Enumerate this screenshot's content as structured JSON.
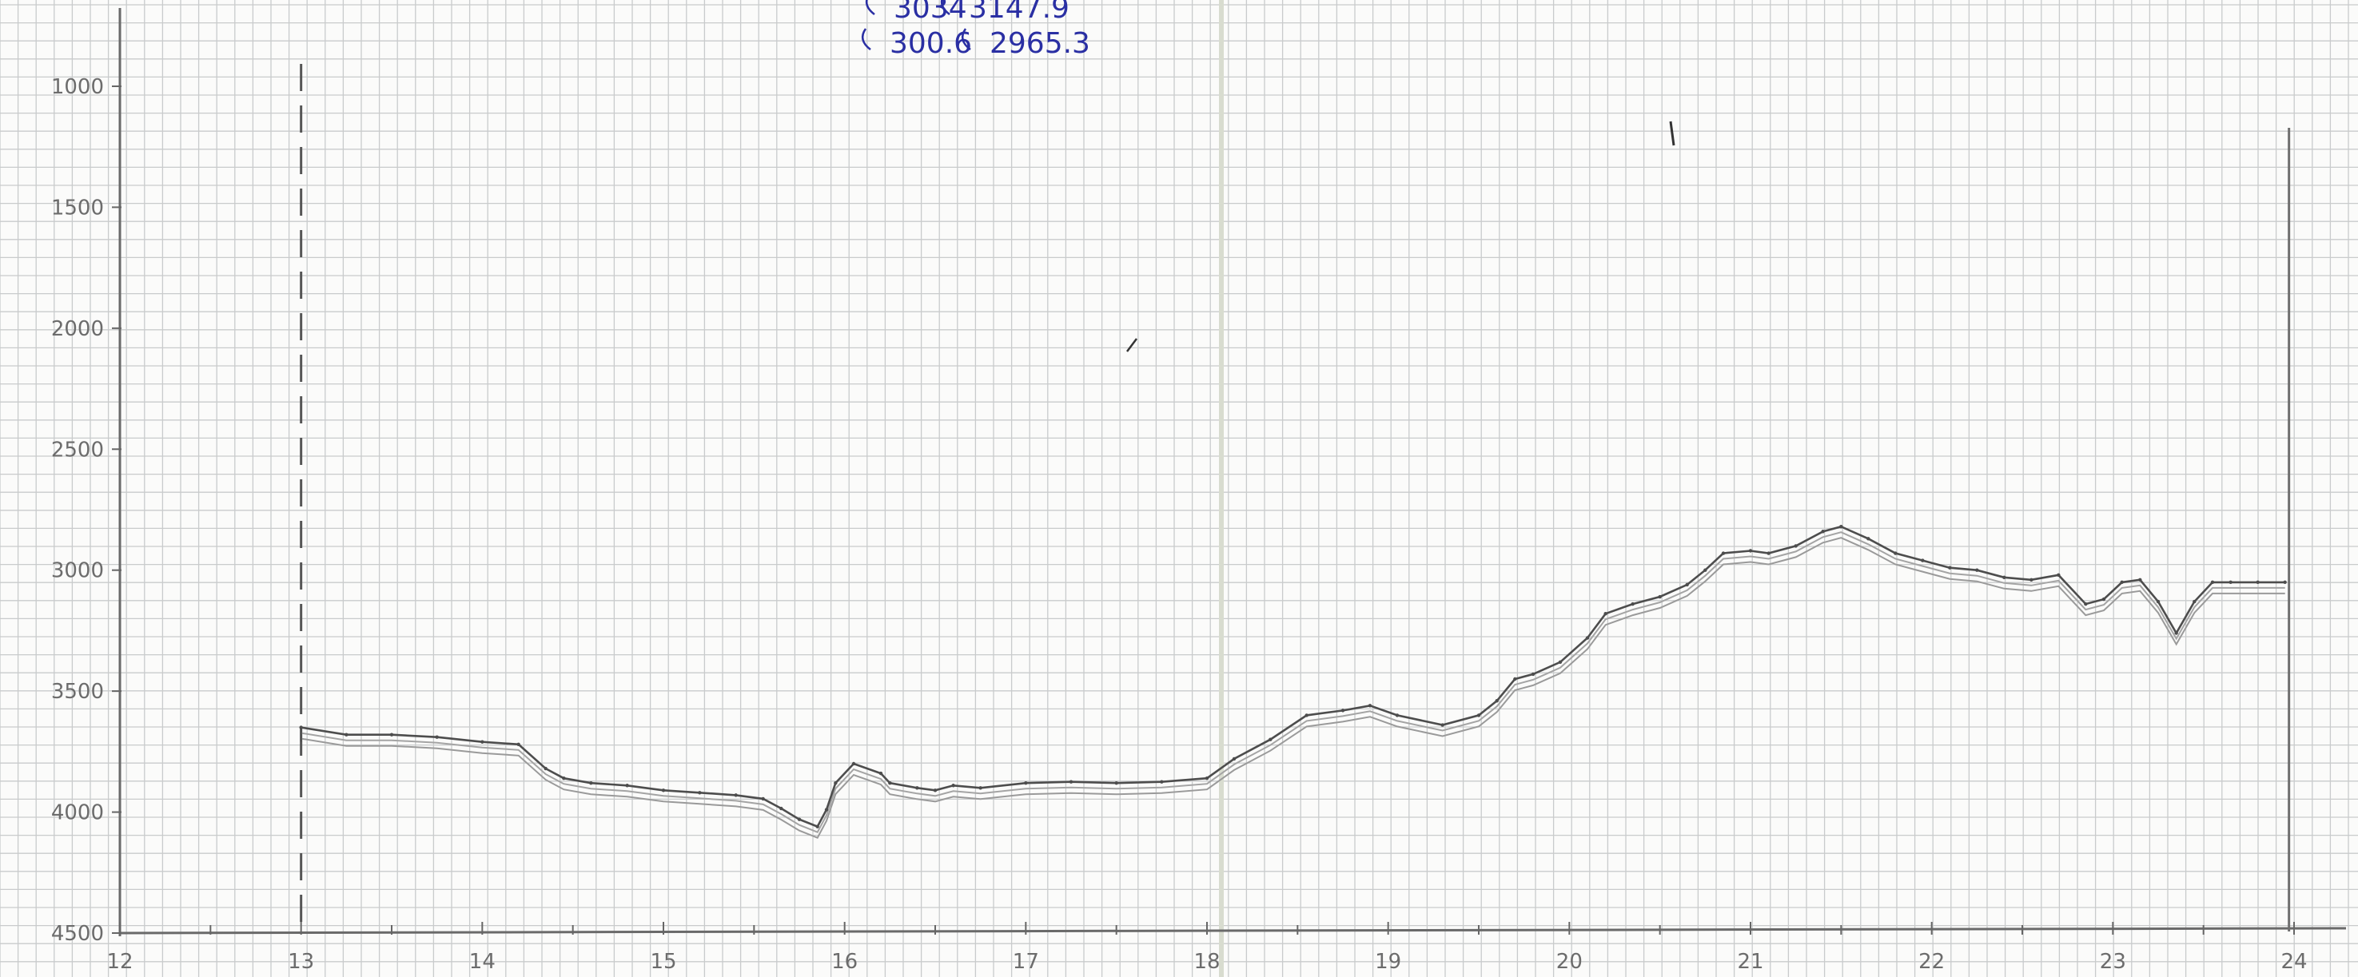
{
  "chart_data": {
    "type": "line",
    "title": "",
    "xlabel": "",
    "ylabel": "",
    "x_ticks": [
      "12",
      "13",
      "14",
      "15",
      "16",
      "17",
      "18",
      "19",
      "20",
      "21",
      "22",
      "23",
      "24"
    ],
    "y_ticks": [
      "1000",
      "1500",
      "2000",
      "2500",
      "3000",
      "3500",
      "4000",
      "4500"
    ],
    "xlim": [
      12,
      24
    ],
    "ylim": [
      1000,
      4500
    ],
    "y_inverted": true,
    "grid": true,
    "x": [
      13.0,
      13.25,
      13.5,
      13.75,
      14.0,
      14.2,
      14.35,
      14.45,
      14.6,
      14.8,
      15.0,
      15.2,
      15.4,
      15.55,
      15.65,
      15.75,
      15.85,
      15.9,
      15.95,
      16.05,
      16.2,
      16.25,
      16.4,
      16.5,
      16.6,
      16.75,
      17.0,
      17.25,
      17.5,
      17.75,
      18.0,
      18.15,
      18.35,
      18.55,
      18.75,
      18.9,
      19.05,
      19.3,
      19.5,
      19.6,
      19.7,
      19.8,
      19.95,
      20.1,
      20.2,
      20.35,
      20.5,
      20.65,
      20.75,
      20.85,
      21.0,
      21.1,
      21.25,
      21.4,
      21.5,
      21.65,
      21.8,
      21.95,
      22.1,
      22.25,
      22.4,
      22.55,
      22.7,
      22.85,
      22.95,
      23.05,
      23.15,
      23.25,
      23.35,
      23.45,
      23.55,
      23.65,
      23.8,
      23.95
    ],
    "series": [
      {
        "values": [
          3650,
          3680,
          3680,
          3690,
          3710,
          3720,
          3820,
          3860,
          3880,
          3890,
          3910,
          3920,
          3930,
          3945,
          3985,
          4030,
          4060,
          3990,
          3880,
          3800,
          3840,
          3880,
          3900,
          3910,
          3890,
          3900,
          3880,
          3875,
          3880,
          3875,
          3860,
          3780,
          3700,
          3600,
          3580,
          3560,
          3600,
          3640,
          3600,
          3540,
          3450,
          3430,
          3380,
          3280,
          3180,
          3140,
          3110,
          3060,
          3000,
          2930,
          2920,
          2930,
          2900,
          2840,
          2820,
          2870,
          2930,
          2960,
          2990,
          3000,
          3030,
          3040,
          3020,
          3140,
          3120,
          3050,
          3040,
          3130,
          3260,
          3130,
          3050,
          3050,
          3050,
          3050
        ]
      }
    ],
    "annotations": [
      "3034",
      "3147.9",
      "300.6",
      "2965.3"
    ]
  }
}
